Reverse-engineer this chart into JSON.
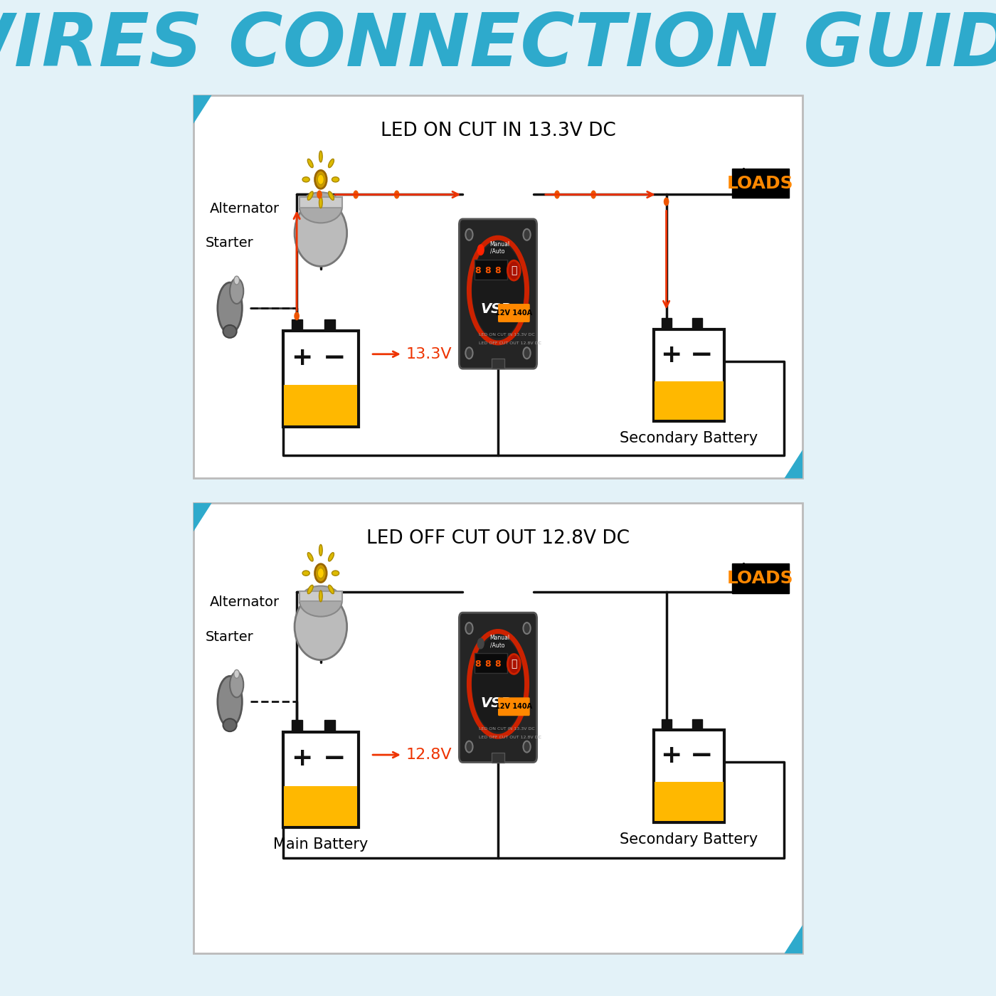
{
  "title": "WIRES CONNECTION GUIDE",
  "title_color": "#2EAACC",
  "bg_color": "#E3F2F8",
  "panel_bg": "#FFFFFF",
  "diagram1_label": "LED ON CUT IN 13.3V DC",
  "diagram2_label": "LED OFF CUT OUT 12.8V DC",
  "diagram1_voltage": "13.3V",
  "diagram2_voltage": "12.8V",
  "loads_bg": "#000000",
  "loads_color": "#FF8800",
  "loads_text": "LOADS",
  "battery_fill": "#FFB800",
  "battery_border": "#111111",
  "wire_color": "#111111",
  "arrow_color": "#EE3300",
  "dot_color": "#EE5500",
  "alternator_label": "Alternator",
  "starter_label": "Starter",
  "secondary_battery_label": "Secondary Battery",
  "main_battery_label": "Main Battery"
}
